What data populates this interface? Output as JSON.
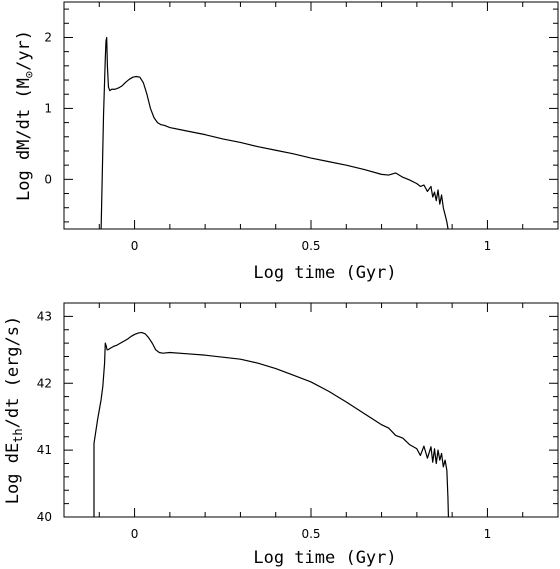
{
  "chart_data": [
    {
      "type": "line",
      "xlabel": "Log time (Gyr)",
      "ylabel": {
        "prefix": "Log dM/dt (M",
        "sub": "⊙",
        "suffix": "/yr)"
      },
      "xlim": [
        -0.2,
        1.2
      ],
      "ylim": [
        -0.7,
        2.5
      ],
      "xticks": [
        {
          "v": 0,
          "label": "0"
        },
        {
          "v": 0.5,
          "label": "0.5"
        },
        {
          "v": 1,
          "label": "1"
        }
      ],
      "yticks": [
        {
          "v": 0,
          "label": "0"
        },
        {
          "v": 1,
          "label": "1"
        },
        {
          "v": 2,
          "label": "2"
        }
      ],
      "x_minor": 0.1,
      "y_minor": 0.2,
      "series": [
        {
          "x": [
            -0.095,
            -0.088,
            -0.083,
            -0.081,
            -0.079,
            -0.077,
            -0.074,
            -0.07,
            -0.065,
            -0.055,
            -0.045,
            -0.035,
            -0.025,
            -0.015,
            -0.005,
            0.005,
            0.015,
            0.025,
            0.035,
            0.045,
            0.055,
            0.065,
            0.075,
            0.085,
            0.1,
            0.15,
            0.2,
            0.25,
            0.3,
            0.35,
            0.4,
            0.45,
            0.5,
            0.55,
            0.6,
            0.65,
            0.7,
            0.72,
            0.74,
            0.76,
            0.78,
            0.8,
            0.81,
            0.82,
            0.83,
            0.84,
            0.845,
            0.85,
            0.855,
            0.86,
            0.865,
            0.87,
            0.875,
            0.88,
            0.885,
            0.89
          ],
          "y": [
            -0.75,
            0.9,
            1.7,
            1.95,
            2.0,
            1.6,
            1.3,
            1.25,
            1.27,
            1.27,
            1.29,
            1.32,
            1.37,
            1.41,
            1.44,
            1.45,
            1.44,
            1.36,
            1.2,
            1.0,
            0.87,
            0.8,
            0.77,
            0.76,
            0.73,
            0.68,
            0.63,
            0.57,
            0.52,
            0.46,
            0.41,
            0.36,
            0.3,
            0.25,
            0.2,
            0.14,
            0.07,
            0.06,
            0.09,
            0.03,
            -0.01,
            -0.06,
            -0.1,
            -0.08,
            -0.17,
            -0.1,
            -0.25,
            -0.18,
            -0.3,
            -0.15,
            -0.35,
            -0.22,
            -0.4,
            -0.5,
            -0.6,
            -0.75
          ]
        }
      ]
    },
    {
      "type": "line",
      "xlabel": "Log time (Gyr)",
      "ylabel": {
        "prefix": "Log dE",
        "sub": "th",
        "suffix": "/dt (erg/s)"
      },
      "xlim": [
        -0.2,
        1.2
      ],
      "ylim": [
        40,
        43.2
      ],
      "xticks": [
        {
          "v": 0,
          "label": "0"
        },
        {
          "v": 0.5,
          "label": "0.5"
        },
        {
          "v": 1,
          "label": "1"
        }
      ],
      "yticks": [
        {
          "v": 40,
          "label": "40"
        },
        {
          "v": 41,
          "label": "41"
        },
        {
          "v": 42,
          "label": "42"
        },
        {
          "v": 43,
          "label": "43"
        }
      ],
      "x_minor": 0.1,
      "y_minor": 0.2,
      "series": [
        {
          "x": [
            -0.115,
            -0.115,
            -0.105,
            -0.095,
            -0.09,
            -0.085,
            -0.083,
            -0.08,
            -0.078,
            -0.075,
            -0.07,
            -0.06,
            -0.05,
            -0.04,
            -0.03,
            -0.02,
            -0.01,
            0.0,
            0.01,
            0.02,
            0.03,
            0.04,
            0.05,
            0.06,
            0.07,
            0.08,
            0.1,
            0.15,
            0.2,
            0.25,
            0.3,
            0.35,
            0.4,
            0.45,
            0.5,
            0.55,
            0.6,
            0.65,
            0.7,
            0.72,
            0.74,
            0.76,
            0.78,
            0.8,
            0.81,
            0.82,
            0.83,
            0.84,
            0.845,
            0.85,
            0.855,
            0.86,
            0.865,
            0.87,
            0.875,
            0.88,
            0.885,
            0.888,
            0.89
          ],
          "y": [
            39.9,
            41.1,
            41.45,
            41.75,
            41.95,
            42.3,
            42.6,
            42.55,
            42.5,
            42.5,
            42.52,
            42.55,
            42.57,
            42.6,
            42.63,
            42.66,
            42.7,
            42.73,
            42.75,
            42.76,
            42.74,
            42.68,
            42.6,
            42.5,
            42.46,
            42.45,
            42.46,
            42.44,
            42.42,
            42.39,
            42.36,
            42.3,
            42.22,
            42.12,
            42.02,
            41.88,
            41.72,
            41.55,
            41.38,
            41.33,
            41.22,
            41.18,
            41.08,
            41.02,
            40.92,
            41.06,
            40.88,
            41.05,
            40.82,
            41.02,
            40.8,
            41.0,
            40.85,
            40.95,
            40.75,
            40.85,
            40.7,
            40.3,
            39.9
          ]
        }
      ]
    }
  ]
}
